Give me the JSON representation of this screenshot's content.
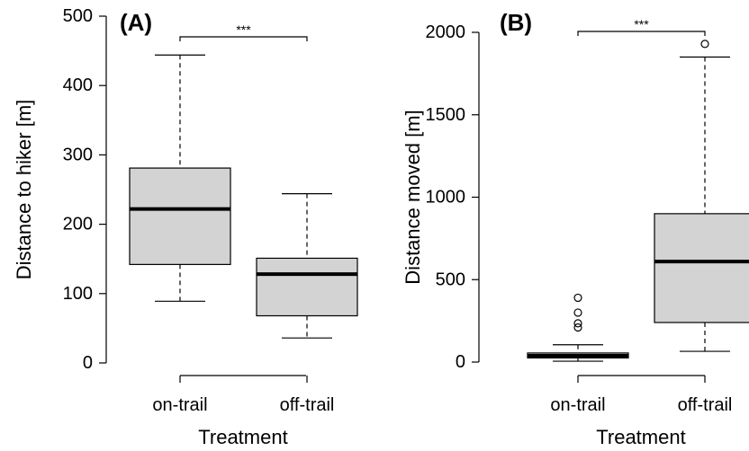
{
  "chart_data": [
    {
      "type": "box",
      "panel_label": "(A)",
      "xlabel": "Treatment",
      "ylabel": "Distance to hiker [m]",
      "ylim": [
        0,
        500
      ],
      "yticks": [
        0,
        100,
        200,
        300,
        400,
        500
      ],
      "categories": [
        "on-trail",
        "off-trail"
      ],
      "boxes": [
        {
          "category": "on-trail",
          "whisker_low": 89,
          "q1": 142,
          "median": 222,
          "q3": 281,
          "whisker_high": 444,
          "outliers": []
        },
        {
          "category": "off-trail",
          "whisker_low": 36,
          "q1": 68,
          "median": 128,
          "q3": 151,
          "whisker_high": 244,
          "outliers": []
        }
      ],
      "significance": "***",
      "color": "#d3d3d3"
    },
    {
      "type": "box",
      "panel_label": "(B)",
      "xlabel": "Treatment",
      "ylabel": "Distance moved [m]",
      "ylim": [
        0,
        2000
      ],
      "yticks": [
        0,
        500,
        1000,
        1500,
        2000
      ],
      "categories": [
        "on-trail",
        "off-trail"
      ],
      "boxes": [
        {
          "category": "on-trail",
          "whisker_low": 5,
          "q1": 25,
          "median": 38,
          "q3": 55,
          "whisker_high": 105,
          "outliers": [
            210,
            235,
            300,
            390
          ]
        },
        {
          "category": "off-trail",
          "whisker_low": 65,
          "q1": 240,
          "median": 610,
          "q3": 900,
          "whisker_high": 1850,
          "outliers": [
            1930
          ]
        }
      ],
      "significance": "***",
      "color": "#d3d3d3"
    }
  ]
}
